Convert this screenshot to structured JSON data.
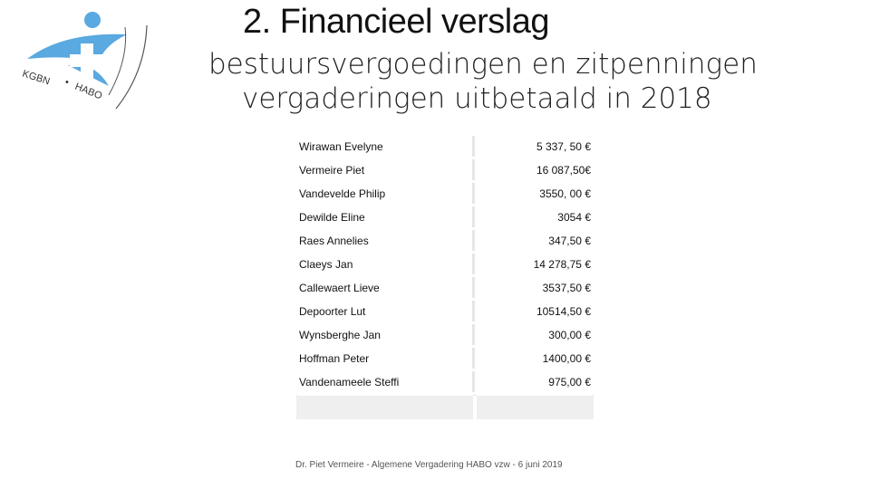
{
  "header": {
    "title": "2. Financieel verslag",
    "subtitle_line1": "bestuursvergoedingen en zitpenningen",
    "subtitle_line2": "vergaderingen uitbetaald in 2018"
  },
  "logo": {
    "icon": "kgbn-habo-cross-logo",
    "text_left": "KGBN",
    "text_right": "HABO",
    "color": "#5aa9e0"
  },
  "table": {
    "rows": [
      {
        "name": "Wirawan Evelyne",
        "amount": "5 337, 50 €"
      },
      {
        "name": "Vermeire Piet",
        "amount": "16 087,50€"
      },
      {
        "name": "Vandevelde Philip",
        "amount": "3550, 00 €"
      },
      {
        "name": "Dewilde Eline",
        "amount": "3054 €"
      },
      {
        "name": "Raes Annelies",
        "amount": "347,50 €"
      },
      {
        "name": "Claeys Jan",
        "amount": "14 278,75 €"
      },
      {
        "name": "Callewaert Lieve",
        "amount": "3537,50 €"
      },
      {
        "name": "Depoorter Lut",
        "amount": "10514,50 €"
      },
      {
        "name": "Wynsberghe Jan",
        "amount": "300,00 €"
      },
      {
        "name": "Hoffman Peter",
        "amount": "1400,00 €"
      },
      {
        "name": "Vandenameele Steffi",
        "amount": "975,00 €"
      }
    ]
  },
  "footer": {
    "text": "Dr. Piet Vermeire - Algemene Vergadering HABO vzw - 6 juni 2019"
  }
}
